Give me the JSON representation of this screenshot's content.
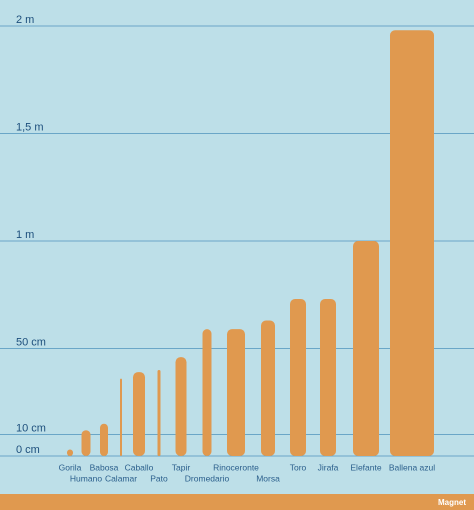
{
  "chart_data": {
    "type": "bar",
    "categories": [
      "Gorila",
      "Humano",
      "Babosa",
      "Calamar",
      "Caballo",
      "Pato",
      "Tapir",
      "Dromedario",
      "Rinoceronte",
      "Morsa",
      "Toro",
      "Jirafa",
      "Elefante",
      "Ballena azul"
    ],
    "values": [
      3,
      12,
      15,
      36,
      39,
      40,
      46,
      59,
      59,
      63,
      73,
      73,
      100,
      198
    ],
    "color": "#e0994f",
    "ylim": [
      0,
      200
    ],
    "yticks": [
      {
        "value": 0,
        "label": "0 cm"
      },
      {
        "value": 10,
        "label": "10 cm"
      },
      {
        "value": 50,
        "label": "50 cm"
      },
      {
        "value": 100,
        "label": "1 m"
      },
      {
        "value": 150,
        "label": "1,5 m"
      },
      {
        "value": 200,
        "label": "2 m"
      }
    ],
    "grid": true,
    "credit": "Magnet"
  }
}
